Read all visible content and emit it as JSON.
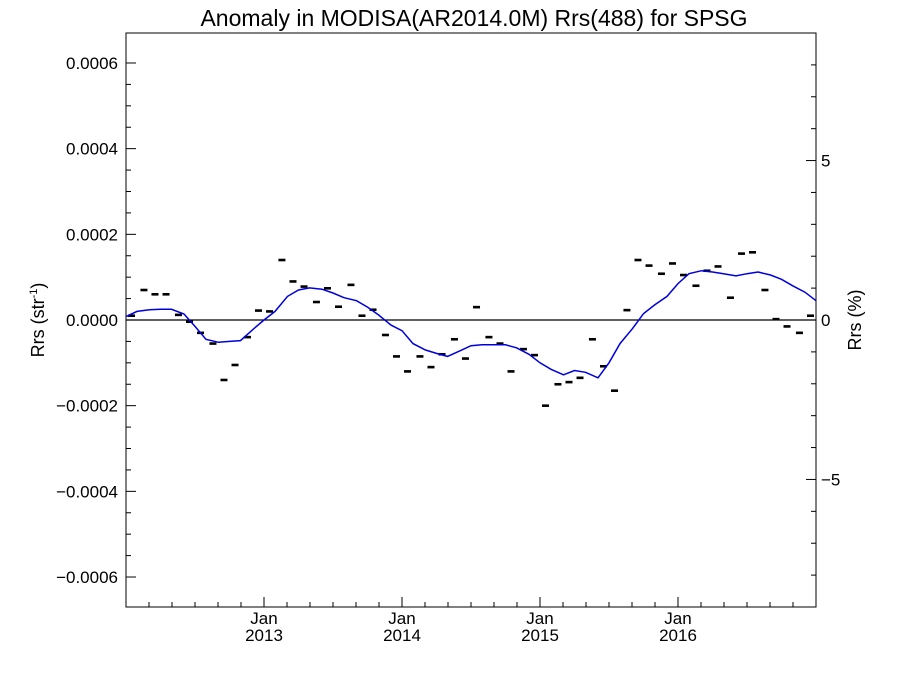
{
  "chart_data": {
    "type": "line",
    "title": "Anomaly in MODISA(AR2014.0M) Rrs(488) for SPSG",
    "ylabel": "Rrs (str",
    "ylabel_sup": "-1",
    "ylabel_close": ")",
    "y2label": "Rrs (%)",
    "xlim": [
      2012.0,
      2017.0
    ],
    "ylim": [
      -0.00067,
      0.00067
    ],
    "y2lim": [
      -9.0,
      9.0
    ],
    "y_ticks": [
      {
        "value": 0.0006,
        "label": "0.0006"
      },
      {
        "value": 0.0004,
        "label": "0.0004"
      },
      {
        "value": 0.0002,
        "label": "0.0002"
      },
      {
        "value": 0.0,
        "label": "0.0000"
      },
      {
        "value": -0.0002,
        "label": "−0.0002"
      },
      {
        "value": -0.0004,
        "label": "−0.0004"
      },
      {
        "value": -0.0006,
        "label": "−0.0006"
      }
    ],
    "y2_ticks": [
      {
        "value": 5,
        "label": "5"
      },
      {
        "value": 0,
        "label": "0"
      },
      {
        "value": -5,
        "label": "−5"
      }
    ],
    "x_ticks": [
      {
        "value": 2013.0,
        "month": "Jan",
        "year": "2013"
      },
      {
        "value": 2014.0,
        "month": "Jan",
        "year": "2014"
      },
      {
        "value": 2015.0,
        "month": "Jan",
        "year": "2015"
      },
      {
        "value": 2016.0,
        "month": "Jan",
        "year": "2016"
      }
    ],
    "zero_line": true,
    "series": [
      {
        "kind": "points",
        "color": "#000000",
        "x": [
          2012.04,
          2012.13,
          2012.21,
          2012.29,
          2012.38,
          2012.46,
          2012.54,
          2012.63,
          2012.71,
          2012.79,
          2012.88,
          2012.96,
          2013.04,
          2013.13,
          2013.21,
          2013.29,
          2013.38,
          2013.46,
          2013.54,
          2013.63,
          2013.71,
          2013.79,
          2013.88,
          2013.96,
          2014.04,
          2014.13,
          2014.21,
          2014.29,
          2014.38,
          2014.46,
          2014.54,
          2014.63,
          2014.71,
          2014.79,
          2014.88,
          2014.96,
          2015.04,
          2015.13,
          2015.21,
          2015.29,
          2015.38,
          2015.46,
          2015.54,
          2015.63,
          2015.71,
          2015.79,
          2015.88,
          2015.96,
          2016.04,
          2016.13,
          2016.21,
          2016.29,
          2016.38,
          2016.46,
          2016.54,
          2016.63,
          2016.71,
          2016.79,
          2016.88,
          2016.96
        ],
        "y": [
          1e-05,
          7e-05,
          6e-05,
          6e-05,
          1.2e-05,
          -4e-06,
          -3e-05,
          -5.5e-05,
          -0.00014,
          -0.000105,
          -4e-05,
          2.2e-05,
          2e-05,
          0.00014,
          9e-05,
          7.8e-05,
          4.2e-05,
          7.4e-05,
          3.1e-05,
          8.2e-05,
          1e-05,
          2.4e-05,
          -3.5e-05,
          -8.5e-05,
          -0.00012,
          -8.5e-05,
          -0.00011,
          -8e-05,
          -4.5e-05,
          -9e-05,
          3e-05,
          -4e-05,
          -5.5e-05,
          -0.00012,
          -6.8e-05,
          -8.2e-05,
          -0.0002,
          -0.00015,
          -0.000145,
          -0.000135,
          -4.5e-05,
          -0.000108,
          -0.000165,
          2.3e-05,
          0.00014,
          0.000127,
          0.000108,
          0.000132,
          0.000105,
          8e-05,
          0.000115,
          0.000125,
          5.2e-05,
          0.000155,
          0.000158,
          7e-05,
          2e-06,
          -1.5e-05,
          -3e-05,
          1e-05
        ]
      },
      {
        "kind": "line",
        "color": "#0000dd",
        "x": [
          2012.0,
          2012.08,
          2012.17,
          2012.25,
          2012.33,
          2012.42,
          2012.5,
          2012.58,
          2012.67,
          2012.75,
          2012.83,
          2012.92,
          2013.0,
          2013.08,
          2013.17,
          2013.25,
          2013.33,
          2013.42,
          2013.5,
          2013.58,
          2013.67,
          2013.75,
          2013.83,
          2013.92,
          2014.0,
          2014.08,
          2014.17,
          2014.25,
          2014.33,
          2014.42,
          2014.5,
          2014.58,
          2014.67,
          2014.75,
          2014.83,
          2014.92,
          2015.0,
          2015.08,
          2015.17,
          2015.25,
          2015.33,
          2015.42,
          2015.5,
          2015.58,
          2015.67,
          2015.75,
          2015.83,
          2015.92,
          2016.0,
          2016.08,
          2016.17,
          2016.25,
          2016.33,
          2016.42,
          2016.5,
          2016.58,
          2016.67,
          2016.75,
          2016.83,
          2016.92,
          2017.0
        ],
        "y": [
          8e-06,
          2e-05,
          2.4e-05,
          2.5e-05,
          2.5e-05,
          1.4e-05,
          -1.5e-05,
          -4.5e-05,
          -5.2e-05,
          -5e-05,
          -4.8e-05,
          -2.2e-05,
          0.0,
          2e-05,
          5.5e-05,
          7e-05,
          7.5e-05,
          7.2e-05,
          6.3e-05,
          5.2e-05,
          4.5e-05,
          3e-05,
          1.2e-05,
          -1.2e-05,
          -2.5e-05,
          -5.5e-05,
          -7e-05,
          -7.8e-05,
          -8.5e-05,
          -7.2e-05,
          -6e-05,
          -5.8e-05,
          -5.8e-05,
          -5.8e-05,
          -6.5e-05,
          -8e-05,
          -0.0001,
          -0.000115,
          -0.000128,
          -0.000118,
          -0.000122,
          -0.000135,
          -0.0001,
          -5.5e-05,
          -2e-05,
          1.5e-05,
          3.5e-05,
          5.5e-05,
          8.5e-05,
          0.000108,
          0.000115,
          0.000112,
          0.000108,
          0.000103,
          0.000108,
          0.000112,
          0.000105,
          9.5e-05,
          8e-05,
          6.5e-05,
          4.5e-05
        ]
      }
    ]
  }
}
